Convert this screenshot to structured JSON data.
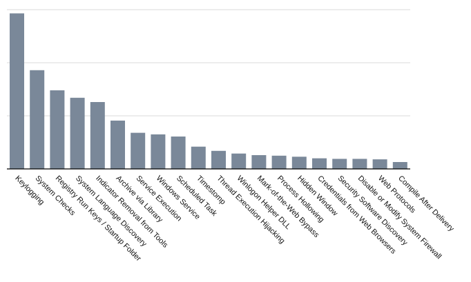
{
  "colors": {
    "bar": "#7a8899",
    "grid": "#d9d9d9",
    "axis": "#000000"
  },
  "chart_data": {
    "type": "bar",
    "title": "",
    "xlabel": "",
    "ylabel": "",
    "ylim": [
      0,
      30
    ],
    "yticks": [
      0,
      10,
      20,
      30
    ],
    "grid": true,
    "y_tick_labels_visible": false,
    "categories": [
      "Keylogging",
      "System Checks",
      "Registry Run Keys / Startup Folder",
      "System Language Discovery",
      "Indicator Removal from Tools",
      "Archive via Library",
      "Service Execution",
      "Windows Service",
      "Scheduled Task",
      "Timestomp",
      "Thread Execution Hijacking",
      "Winlogon Helper DLL",
      "Mark-of-the-Web Bypass",
      "Process Hollowing",
      "Hidden Window",
      "Credentials from Web Browsers",
      "Security Software Discovery",
      "Disable or Modify System Firewall",
      "Web Protocols",
      "Compile After Delivery"
    ],
    "values": [
      29.3,
      18.6,
      14.8,
      13.4,
      12.6,
      9.1,
      6.8,
      6.5,
      6.1,
      4.2,
      3.4,
      2.9,
      2.6,
      2.5,
      2.3,
      2.0,
      1.9,
      1.9,
      1.8,
      1.3
    ]
  }
}
